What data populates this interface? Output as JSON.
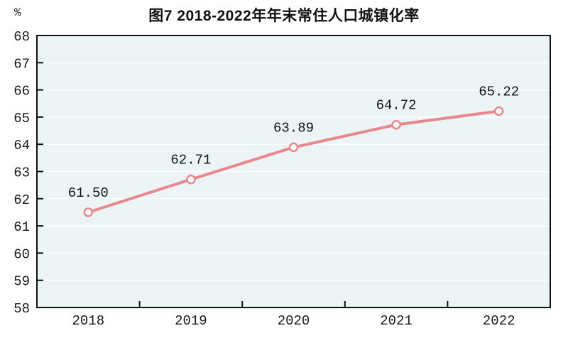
{
  "figure": {
    "unit_label": "%"
  },
  "chart_data": {
    "type": "line",
    "title": "图7  2018-2022年年末常住人口城镇化率",
    "categories": [
      "2018",
      "2019",
      "2020",
      "2021",
      "2022"
    ],
    "values": [
      61.5,
      62.71,
      63.89,
      64.72,
      65.22
    ],
    "value_labels": [
      "61.50",
      "62.71",
      "63.89",
      "64.72",
      "65.22"
    ],
    "xlabel": "",
    "ylabel": "%",
    "ylim": [
      58,
      68
    ],
    "yticks": [
      58,
      59,
      60,
      61,
      62,
      63,
      64,
      65,
      66,
      67,
      68
    ],
    "grid": "horizontal",
    "legend": "none",
    "colors": {
      "line": "#e8878e",
      "marker_fill": "#ffffff",
      "plot_bg": "#edf4f6",
      "gridline": "#fbfdfe",
      "axis": "#111111",
      "text": "#1a1a1a"
    }
  }
}
